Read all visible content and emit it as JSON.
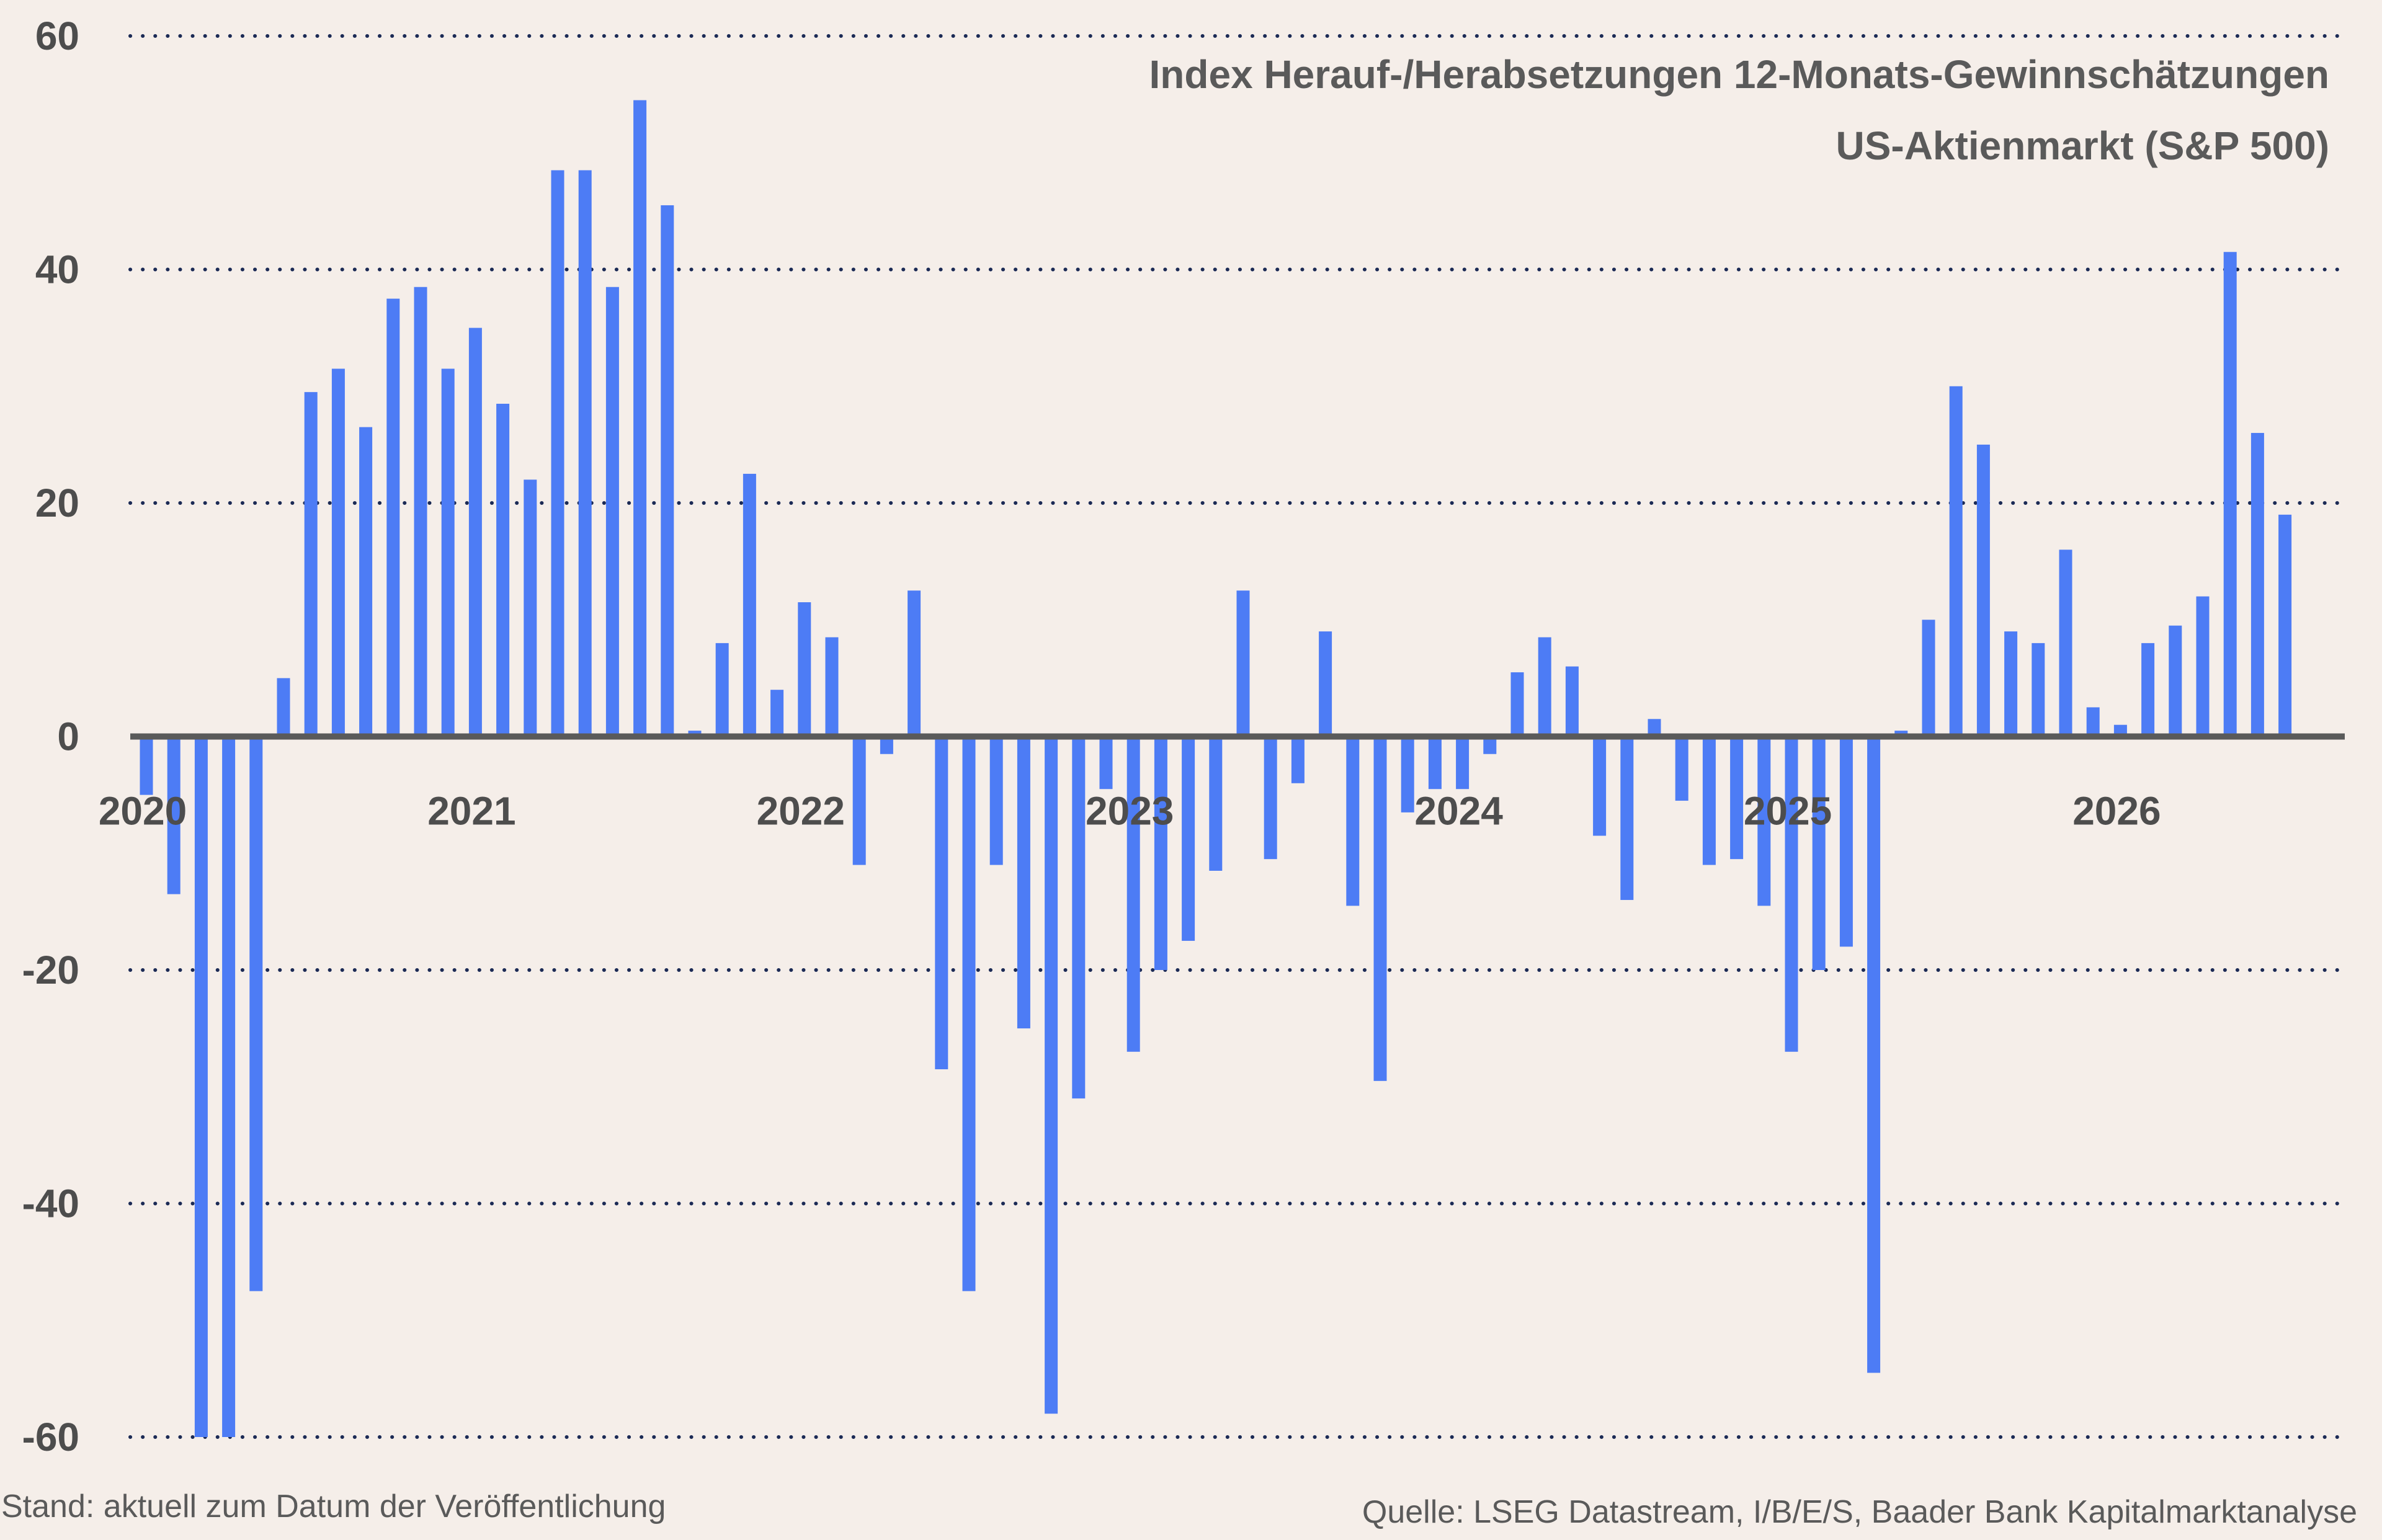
{
  "chart_data": {
    "type": "bar",
    "title": "Index Herauf-/Herabsetzungen 12-Monats-Gewinnschätzungen",
    "subtitle": "US-Aktienmarkt (S&P 500)",
    "ylim": [
      -60,
      60
    ],
    "yticks": [
      60,
      40,
      20,
      0,
      -20,
      -40,
      -60
    ],
    "xticks": [
      "2020",
      "2021",
      "2022",
      "2023",
      "2024",
      "2025",
      "2026"
    ],
    "x_start": "2020-01",
    "bar_color": "#4d7cf5",
    "grid": true,
    "values": [
      -5,
      -13.5,
      -60,
      -60,
      -47.5,
      5,
      29.5,
      31.5,
      26.5,
      37.5,
      38.5,
      31.5,
      35,
      28.5,
      22,
      48.5,
      48.5,
      38.5,
      54.5,
      45.5,
      0.5,
      8,
      22.5,
      4,
      11.5,
      8.5,
      -11,
      -1.5,
      12.5,
      -28.5,
      -47.5,
      -11,
      -25,
      -58,
      -31,
      -4.5,
      -27,
      -20,
      -17.5,
      -11.5,
      12.5,
      -10.5,
      -4,
      9,
      -14.5,
      -29.5,
      -6.5,
      -4.5,
      -4.5,
      -1.5,
      5.5,
      8.5,
      6,
      -8.5,
      -14,
      1.5,
      -5.5,
      -11,
      -10.5,
      -14.5,
      -27,
      -20,
      -18,
      -54.5,
      0.5,
      10,
      30,
      25,
      9,
      8,
      16,
      2.5,
      1,
      8,
      9.5,
      12,
      41.5,
      26,
      19
    ]
  },
  "footer": {
    "left": "Stand: aktuell zum Datum der Veröffentlichung",
    "right": "Quelle: LSEG Datastream, I/B/E/S, Baader Bank Kapitalmarktanalyse"
  }
}
